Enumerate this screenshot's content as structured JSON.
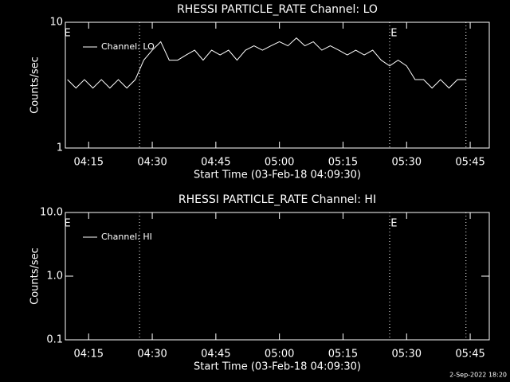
{
  "charts": [
    {
      "type": "line",
      "title": "RHESSI PARTICLE_RATE Channel: LO",
      "ylabel": "Counts/sec",
      "xlabel": "Start Time (03-Feb-18 04:09:30)",
      "log_y": true,
      "ylim": [
        1,
        10
      ],
      "yticks": [
        1,
        10
      ],
      "xlim": [
        "04:09:30",
        "05:49:30"
      ],
      "xticks": [
        "04:15",
        "04:30",
        "04:45",
        "05:00",
        "05:15",
        "05:30",
        "05:45"
      ],
      "vlines": [
        "04:27",
        "05:26",
        "05:44"
      ],
      "annotations": [
        {
          "text": "E",
          "x": "04:10"
        },
        {
          "text": "E",
          "x": "05:27"
        }
      ],
      "x": [
        "04:10",
        "04:12",
        "04:14",
        "04:16",
        "04:18",
        "04:20",
        "04:22",
        "04:24",
        "04:26",
        "04:28",
        "04:30",
        "04:32",
        "04:34",
        "04:36",
        "04:38",
        "04:40",
        "04:42",
        "04:44",
        "04:46",
        "04:48",
        "04:50",
        "04:52",
        "04:54",
        "04:56",
        "04:58",
        "05:00",
        "05:02",
        "05:04",
        "05:06",
        "05:08",
        "05:10",
        "05:12",
        "05:14",
        "05:16",
        "05:18",
        "05:20",
        "05:22",
        "05:24",
        "05:26",
        "05:28",
        "05:30",
        "05:32",
        "05:34",
        "05:36",
        "05:38",
        "05:40",
        "05:42",
        "05:44"
      ],
      "series": [
        {
          "name": "Channel: LO",
          "color": "#ffffff",
          "values": [
            3.5,
            3,
            3.5,
            3,
            3.5,
            3,
            3.5,
            3,
            3.5,
            5,
            6,
            7,
            5,
            5,
            5.5,
            6,
            5,
            6,
            5.5,
            6,
            5,
            6,
            6.5,
            6,
            6.5,
            7,
            6.5,
            7.5,
            6.5,
            7,
            6,
            6.5,
            6,
            5.5,
            6,
            5.5,
            6,
            5,
            4.5,
            5,
            4.5,
            3.5,
            3.5,
            3,
            3.5,
            3,
            3.5,
            3.5
          ]
        }
      ]
    },
    {
      "type": "line",
      "title": "RHESSI PARTICLE_RATE Channel: HI",
      "ylabel": "Counts/sec",
      "xlabel": "Start Time (03-Feb-18 04:09:30)",
      "log_y": true,
      "ylim": [
        0.1,
        10
      ],
      "yticks": [
        0.1,
        {
          "value": 1,
          "label": "1.0"
        },
        {
          "value": 10,
          "label": "10.0"
        }
      ],
      "xlim": [
        "04:09:30",
        "05:49:30"
      ],
      "xticks": [
        "04:15",
        "04:30",
        "04:45",
        "05:00",
        "05:15",
        "05:30",
        "05:45"
      ],
      "vlines": [
        "04:27",
        "05:26",
        "05:44"
      ],
      "annotations": [
        {
          "text": "E",
          "x": "04:10"
        },
        {
          "text": "E",
          "x": "05:27"
        }
      ],
      "x": [],
      "series": [
        {
          "name": "Channel: HI",
          "color": "#ffffff",
          "values": []
        }
      ]
    }
  ],
  "footer": "2-Sep-2022 18:20"
}
